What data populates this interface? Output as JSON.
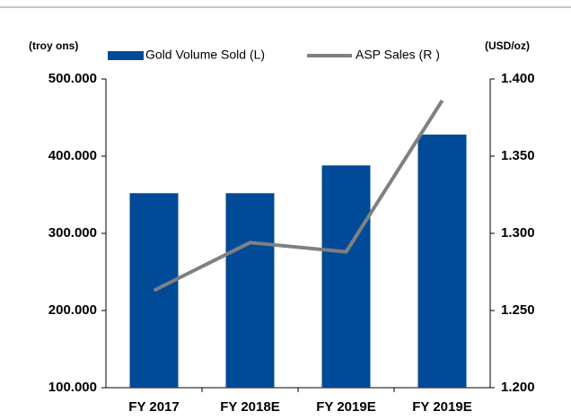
{
  "chart_data": {
    "type": "bar_line",
    "y_label": "(troy ons)",
    "y2_label": "(USD/oz)",
    "categories": [
      "FY 2017",
      "FY 2018E",
      "FY 2019E",
      "FY 2019E"
    ],
    "series": [
      {
        "name": "Gold Volume Sold (L)",
        "color": "#004a98",
        "type": "bar",
        "axis": "y",
        "values": [
          352000,
          352000,
          388000,
          428000
        ]
      },
      {
        "name": "ASP Sales (R )",
        "color": "#808080",
        "type": "line",
        "axis": "y2",
        "values": [
          1263,
          1294,
          1288,
          1386
        ]
      }
    ],
    "ylim": [
      100000,
      500000
    ],
    "yticks": [
      {
        "value": 100000,
        "label": "100.000"
      },
      {
        "value": 200000,
        "label": "200.000"
      },
      {
        "value": 300000,
        "label": "300.000"
      },
      {
        "value": 400000,
        "label": "400.000"
      },
      {
        "value": 500000,
        "label": "500.000"
      }
    ],
    "y2lim": [
      1200,
      1400
    ],
    "y2ticks": [
      {
        "value": 1200,
        "label": "1.200"
      },
      {
        "value": 1250,
        "label": "1.250"
      },
      {
        "value": 1300,
        "label": "1.300"
      },
      {
        "value": 1350,
        "label": "1.350"
      },
      {
        "value": 1400,
        "label": "1.400"
      }
    ]
  }
}
